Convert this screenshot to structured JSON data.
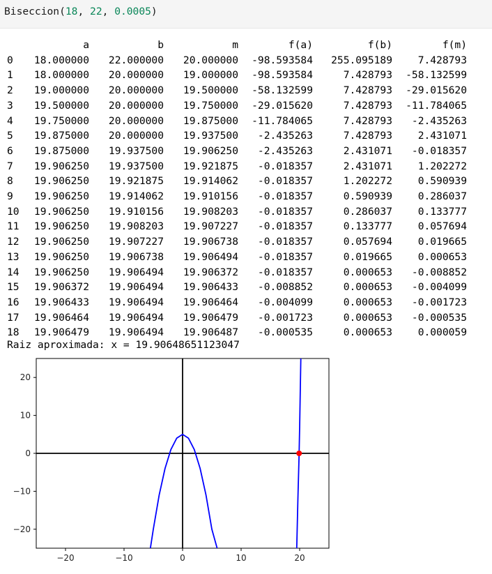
{
  "input": {
    "fn_name": "Biseccion",
    "open": "(",
    "arg1": "18",
    "sep1": ", ",
    "arg2": "22",
    "sep2": ", ",
    "arg3": "0.0005",
    "close": ")"
  },
  "table": {
    "columns": [
      "",
      "a",
      "b",
      "m",
      "f(a)",
      "f(b)",
      "f(m)"
    ],
    "rows": [
      [
        "0",
        "18.000000",
        "22.000000",
        "20.000000",
        "-98.593584",
        "255.095189",
        "7.428793"
      ],
      [
        "1",
        "18.000000",
        "20.000000",
        "19.000000",
        "-98.593584",
        "7.428793",
        "-58.132599"
      ],
      [
        "2",
        "19.000000",
        "20.000000",
        "19.500000",
        "-58.132599",
        "7.428793",
        "-29.015620"
      ],
      [
        "3",
        "19.500000",
        "20.000000",
        "19.750000",
        "-29.015620",
        "7.428793",
        "-11.784065"
      ],
      [
        "4",
        "19.750000",
        "20.000000",
        "19.875000",
        "-11.784065",
        "7.428793",
        "-2.435263"
      ],
      [
        "5",
        "19.875000",
        "20.000000",
        "19.937500",
        "-2.435263",
        "7.428793",
        "2.431071"
      ],
      [
        "6",
        "19.875000",
        "19.937500",
        "19.906250",
        "-2.435263",
        "2.431071",
        "-0.018357"
      ],
      [
        "7",
        "19.906250",
        "19.937500",
        "19.921875",
        "-0.018357",
        "2.431071",
        "1.202272"
      ],
      [
        "8",
        "19.906250",
        "19.921875",
        "19.914062",
        "-0.018357",
        "1.202272",
        "0.590939"
      ],
      [
        "9",
        "19.906250",
        "19.914062",
        "19.910156",
        "-0.018357",
        "0.590939",
        "0.286037"
      ],
      [
        "10",
        "19.906250",
        "19.910156",
        "19.908203",
        "-0.018357",
        "0.286037",
        "0.133777"
      ],
      [
        "11",
        "19.906250",
        "19.908203",
        "19.907227",
        "-0.018357",
        "0.133777",
        "0.057694"
      ],
      [
        "12",
        "19.906250",
        "19.907227",
        "19.906738",
        "-0.018357",
        "0.057694",
        "0.019665"
      ],
      [
        "13",
        "19.906250",
        "19.906738",
        "19.906494",
        "-0.018357",
        "0.019665",
        "0.000653"
      ],
      [
        "14",
        "19.906250",
        "19.906494",
        "19.906372",
        "-0.018357",
        "0.000653",
        "-0.008852"
      ],
      [
        "15",
        "19.906372",
        "19.906494",
        "19.906433",
        "-0.008852",
        "0.000653",
        "-0.004099"
      ],
      [
        "16",
        "19.906433",
        "19.906494",
        "19.906464",
        "-0.004099",
        "0.000653",
        "-0.001723"
      ],
      [
        "17",
        "19.906464",
        "19.906494",
        "19.906479",
        "-0.001723",
        "0.000653",
        "-0.000535"
      ],
      [
        "18",
        "19.906479",
        "19.906494",
        "19.906487",
        "-0.000535",
        "0.000653",
        "0.000059"
      ]
    ]
  },
  "result_text": "Raiz aproximada: x = 19.90648651123047",
  "chart_data": {
    "type": "line",
    "title": "",
    "xlabel": "",
    "ylabel": "",
    "xlim": [
      -25,
      25
    ],
    "ylim": [
      -25,
      25
    ],
    "xticks": [
      -20,
      -10,
      0,
      10,
      20
    ],
    "yticks": [
      -20,
      -10,
      0,
      10,
      20
    ],
    "xtick_labels": [
      "−20",
      "−10",
      "0",
      "10",
      "20"
    ],
    "ytick_labels": [
      "−20",
      "−10",
      "0",
      "10",
      "20"
    ],
    "grid": false,
    "series": [
      {
        "color": "#0000ff",
        "points": [
          [
            -5.5,
            -25
          ],
          [
            -5,
            -20
          ],
          [
            -4,
            -11
          ],
          [
            -3,
            -4
          ],
          [
            -2,
            1
          ],
          [
            -1,
            4
          ],
          [
            0,
            5
          ],
          [
            1,
            4
          ],
          [
            2,
            1
          ],
          [
            3,
            -4
          ],
          [
            4,
            -11
          ],
          [
            5,
            -20
          ],
          [
            5.9,
            -25
          ]
        ]
      },
      {
        "color": "#0000ff",
        "points": [
          [
            19.5,
            -25
          ],
          [
            19.7,
            -12
          ],
          [
            19.9,
            -0.5
          ],
          [
            20.0,
            7
          ],
          [
            20.1,
            16
          ],
          [
            20.2,
            25
          ]
        ]
      }
    ],
    "axis_lines": {
      "x_zero": true,
      "y_zero": true,
      "color": "#000000"
    },
    "marker": {
      "x": 19.90648651123047,
      "y": 0,
      "color": "#ff0000"
    }
  }
}
